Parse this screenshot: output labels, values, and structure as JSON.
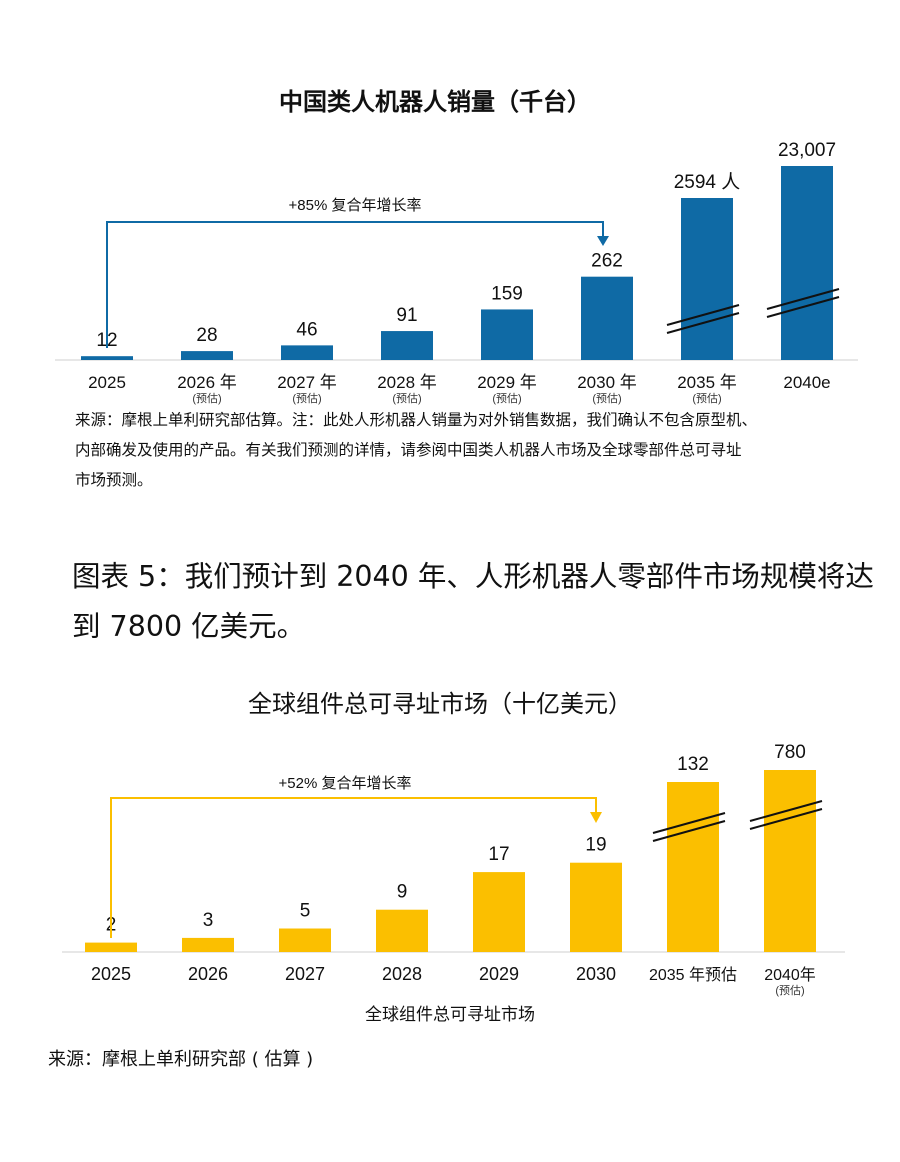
{
  "chart_data": [
    {
      "type": "bar",
      "title": "中国类人机器人销量（千台）",
      "categories": [
        "2025",
        "2026 年",
        "2027 年",
        "2028 年",
        "2029 年",
        "2030 年",
        "2035 年",
        "2040e"
      ],
      "category_notes": [
        "",
        "(预估)",
        "(预估)",
        "(预估)",
        "(预估)",
        "(预估)",
        "(预估)",
        ""
      ],
      "values": [
        12,
        28,
        46,
        91,
        159,
        262,
        2594,
        23007
      ],
      "value_labels": [
        "12",
        "28",
        "46",
        "91",
        "159",
        "262",
        "2594 人",
        "23,007"
      ],
      "broken_axis_categories": [
        "2035 年",
        "2040e"
      ],
      "annotation": "+85% 复合年增长率",
      "annotation_from": "2025",
      "annotation_to": "2030 年",
      "xlabel": "",
      "ylabel": "",
      "color": "#0f6aa5"
    },
    {
      "type": "bar",
      "title": "全球组件总可寻址市场（十亿美元）",
      "categories": [
        "2025",
        "2026",
        "2027",
        "2028",
        "2029",
        "2030",
        "2035 年预估",
        "2040年"
      ],
      "category_notes": [
        "",
        "",
        "",
        "",
        "",
        "",
        "",
        "(预估)"
      ],
      "values": [
        2,
        3,
        5,
        9,
        17,
        19,
        132,
        780
      ],
      "value_labels": [
        "2",
        "3",
        "5",
        "9",
        "17",
        "19",
        "132",
        "780"
      ],
      "broken_axis_categories": [
        "2035 年预估",
        "2040年"
      ],
      "annotation": "+52% 复合年增长率",
      "annotation_from": "2025",
      "annotation_to": "2030",
      "xlabel": "全球组件总可寻址市场",
      "ylabel": "",
      "color": "#fbbf00"
    }
  ],
  "source1": {
    "line1": "来源：摩根上单利研究部估算。注：此处人形机器人销量为对外销售数据，我们确认不包含原型机、",
    "line2": "内部确发及使用的产品。有关我们预测的详情，请参阅中国类人机器人市场及全球零部件总可寻址",
    "line3": "市场预测。"
  },
  "heading": {
    "line1": "图表 5：我们预计到 2040 年、人形机器人零部件市场规模将达",
    "line2": "到 7800 亿美元。"
  },
  "source2": "来源：摩根上单利研究部 ( 估算 )",
  "colors": {
    "accent_blue": "#0f6aa5",
    "accent_yellow": "#fbbf00"
  }
}
